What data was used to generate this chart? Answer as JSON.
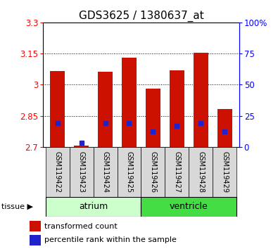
{
  "title": "GDS3625 / 1380637_at",
  "samples": [
    "GSM119422",
    "GSM119423",
    "GSM119424",
    "GSM119425",
    "GSM119426",
    "GSM119427",
    "GSM119428",
    "GSM119429"
  ],
  "red_bar_tops": [
    3.065,
    2.705,
    3.062,
    3.13,
    2.98,
    3.07,
    3.155,
    2.882
  ],
  "blue_dot_y": [
    2.815,
    2.72,
    2.815,
    2.815,
    2.775,
    2.8,
    2.815,
    2.775
  ],
  "bar_bottom": 2.7,
  "ylim_left": [
    2.7,
    3.3
  ],
  "ylim_right": [
    0,
    100
  ],
  "yticks_left": [
    2.7,
    2.85,
    3.0,
    3.15,
    3.3
  ],
  "ytick_labels_left": [
    "2.7",
    "2.85",
    "3",
    "3.15",
    "3.3"
  ],
  "yticks_right": [
    0,
    25,
    50,
    75,
    100
  ],
  "ytick_labels_right": [
    "0",
    "25",
    "50",
    "75",
    "100%"
  ],
  "hgrid_at": [
    2.85,
    3.0,
    3.15
  ],
  "bar_color": "#cc1100",
  "blue_color": "#2222cc",
  "bar_width": 0.6,
  "atrium_color": "#ccffcc",
  "ventricle_color": "#44dd44",
  "legend_items": [
    {
      "color": "#cc1100",
      "label": "transformed count"
    },
    {
      "color": "#2222cc",
      "label": "percentile rank within the sample"
    }
  ],
  "title_fontsize": 11,
  "tick_fontsize": 8.5,
  "sample_fontsize": 7,
  "tissue_fontsize": 9,
  "legend_fontsize": 8,
  "bg_color": "#d8d8d8"
}
